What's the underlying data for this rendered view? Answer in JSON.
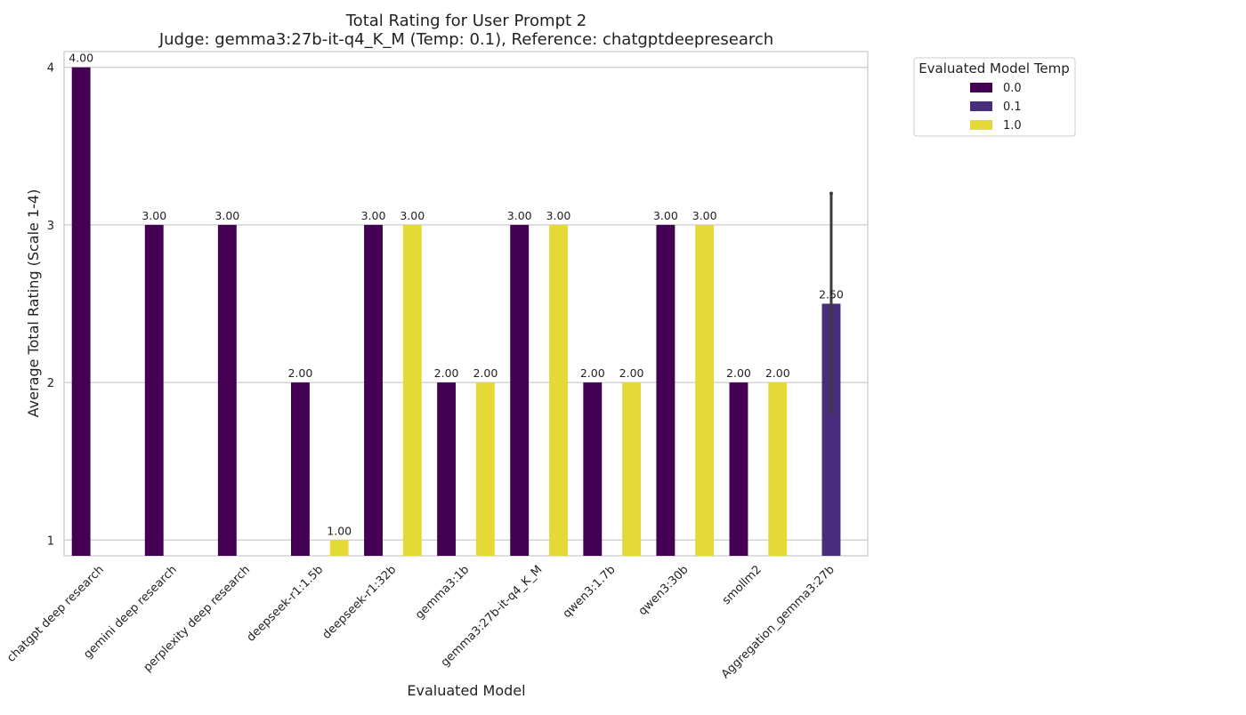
{
  "chart_data": {
    "type": "bar",
    "title": "Total Rating for User Prompt 2",
    "subtitle": "Judge: gemma3:27b-it-q4_K_M (Temp: 0.1), Reference: chatgptdeepresearch",
    "xlabel": "Evaluated Model",
    "ylabel": "Average Total Rating (Scale 1-4)",
    "ylim": [
      0.9,
      4.1
    ],
    "yticks": [
      1,
      2,
      3,
      4
    ],
    "grid": true,
    "legend_position": "outside top-right",
    "legend_title": "Evaluated Model Temp",
    "categories": [
      "chatgpt deep research",
      "gemini deep research",
      "perplexity deep research",
      "deepseek-r1:1.5b",
      "deepseek-r1:32b",
      "gemma3:1b",
      "gemma3:27b-it-q4_K_M",
      "qwen3:1.7b",
      "qwen3:30b",
      "smollm2",
      "Aggregation_gemma3:27b"
    ],
    "series": [
      {
        "name": "0.0",
        "color": "#440154",
        "values": [
          4.0,
          3.0,
          3.0,
          2.0,
          3.0,
          2.0,
          3.0,
          2.0,
          3.0,
          2.0,
          null
        ],
        "labels": [
          "4.00",
          "3.00",
          "3.00",
          "2.00",
          "3.00",
          "2.00",
          "3.00",
          "2.00",
          "3.00",
          "2.00",
          null
        ]
      },
      {
        "name": "0.1",
        "color": "#472d7b",
        "values": [
          null,
          null,
          null,
          null,
          null,
          null,
          null,
          null,
          null,
          null,
          2.5
        ],
        "labels": [
          null,
          null,
          null,
          null,
          null,
          null,
          null,
          null,
          null,
          null,
          "2.50"
        ],
        "error": [
          null,
          null,
          null,
          null,
          null,
          null,
          null,
          null,
          null,
          null,
          [
            1.8,
            3.2
          ]
        ]
      },
      {
        "name": "1.0",
        "color": "#e5d937",
        "values": [
          null,
          null,
          null,
          1.0,
          3.0,
          2.0,
          3.0,
          2.0,
          3.0,
          2.0,
          null
        ],
        "labels": [
          null,
          null,
          null,
          "1.00",
          "3.00",
          "2.00",
          "3.00",
          "2.00",
          "3.00",
          "2.00",
          null
        ]
      }
    ]
  }
}
